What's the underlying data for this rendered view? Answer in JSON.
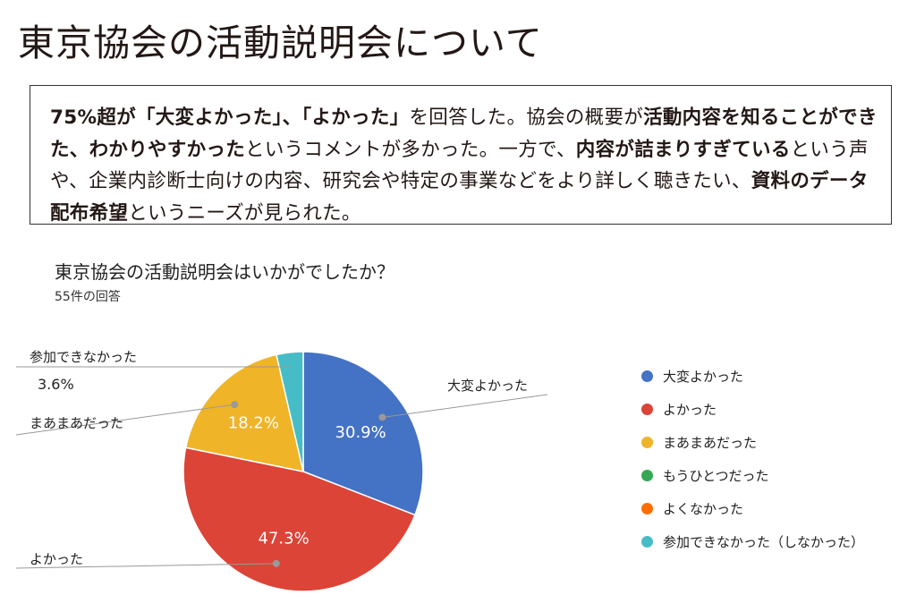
{
  "page": {
    "title": "東京協会の活動説明会について"
  },
  "summary": {
    "segments": [
      {
        "t": "75%超が「大変よかった」、「よかった」",
        "b": true
      },
      {
        "t": "を回答した。協会の概要が",
        "b": false
      },
      {
        "t": "活動内容を知ることができた、わかりやすかった",
        "b": true
      },
      {
        "t": "というコメントが多かった。一方で、",
        "b": false
      },
      {
        "t": "内容が詰まりすぎている",
        "b": true
      },
      {
        "t": "という声や、企業内診断士向けの内容、研究会や特定の事業などをより詳しく聴きたい、",
        "b": false
      },
      {
        "t": "資料のデータ配布希望",
        "b": true
      },
      {
        "t": "というニーズが見られた。",
        "b": false
      }
    ]
  },
  "chart_data": {
    "type": "pie",
    "title": "東京協会の活動説明会はいかがでしたか？",
    "subtitle": "55件の回答",
    "legend_position": "right",
    "series": [
      {
        "name": "大変よかった",
        "value": 30.9,
        "label": "30.9%",
        "color": "#4472c4",
        "callout": "大変よかった"
      },
      {
        "name": "よかった",
        "value": 47.3,
        "label": "47.3%",
        "color": "#db4437",
        "callout": "よかった"
      },
      {
        "name": "まあまあだった",
        "value": 18.2,
        "label": "18.2%",
        "color": "#f0b428",
        "callout": "まあまあだった"
      },
      {
        "name": "もうひとつだった",
        "value": 0,
        "label": "",
        "color": "#34a853",
        "callout": ""
      },
      {
        "name": "よくなかった",
        "value": 0,
        "label": "",
        "color": "#ff6d00",
        "callout": ""
      },
      {
        "name": "参加できなかった（しなかった）",
        "value": 3.6,
        "label": "3.6%",
        "color": "#46bdc6",
        "callout": "参加できなかった"
      }
    ]
  }
}
